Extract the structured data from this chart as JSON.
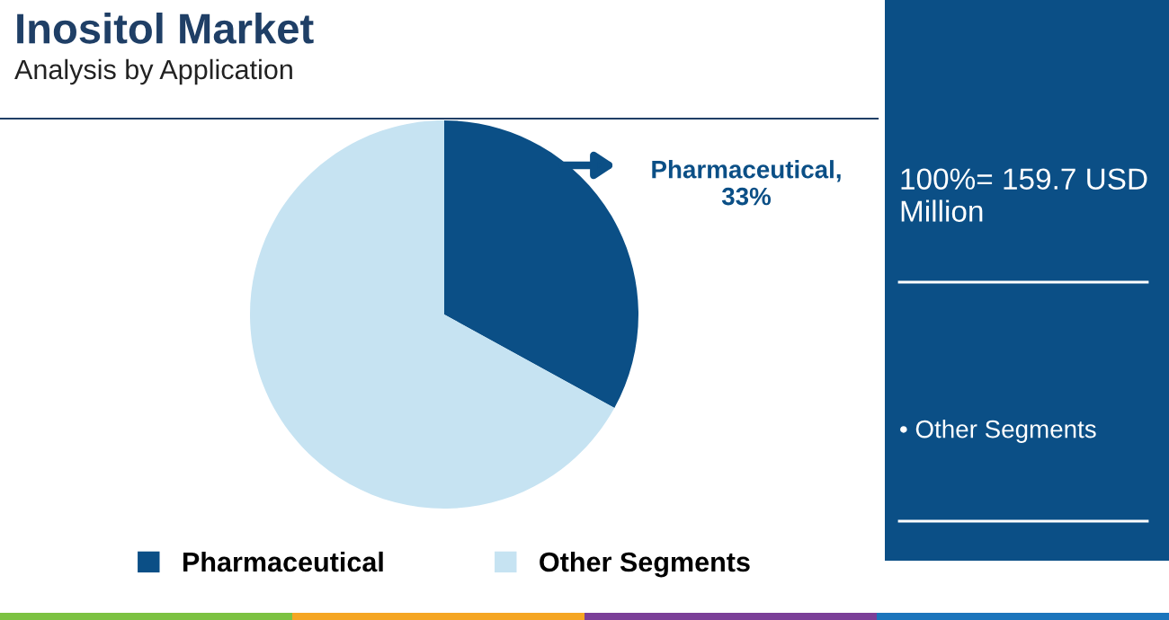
{
  "chart_data": {
    "type": "pie",
    "title": "Inositol Market",
    "subtitle": "Analysis by Application",
    "categories": [
      "Pharmaceutical",
      "Other Segments"
    ],
    "values": [
      33,
      67
    ],
    "colors": [
      "#0b4f86",
      "#c6e3f2"
    ],
    "value_labels": [
      "Pharmaceutical,\n33%",
      null
    ],
    "legend": "bottom",
    "annotations": [
      "100%= 159.7 USD Million",
      "• Other Segments"
    ]
  }
}
